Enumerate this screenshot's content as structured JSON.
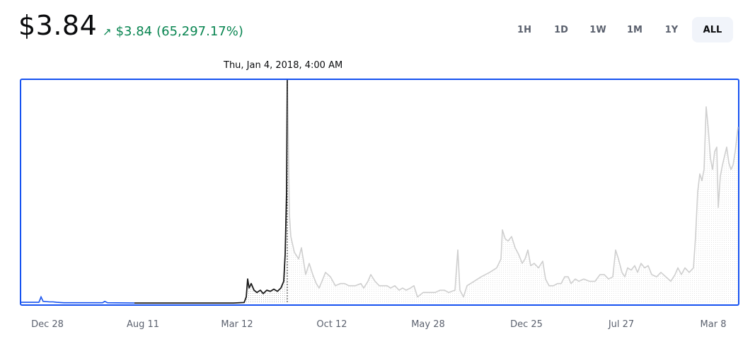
{
  "header": {
    "price": "$3.84",
    "change_arrow_icon": "arrow-up-right-icon",
    "change_amount": "$3.84",
    "change_percent": "(65,297.17%)",
    "change_color": "#098551"
  },
  "ranges": {
    "options": [
      "1H",
      "1D",
      "1W",
      "1M",
      "1Y",
      "ALL"
    ],
    "selected": "ALL"
  },
  "tooltip": {
    "label": "Thu, Jan 4, 2018, 4:00 AM"
  },
  "chart_data": {
    "type": "line",
    "x_tick_labels": [
      "Dec 28",
      "Aug 11",
      "Mar 12",
      "Oct 12",
      "May 28",
      "Dec 25",
      "Jul 27",
      "Mar 8"
    ],
    "hover_date": "Thu, Jan 4, 2018, 4:00 AM",
    "colors": {
      "highlighted": "#1a1a1a",
      "rest": "#cfcfcf",
      "early": "#1652f0",
      "border": "#1652f0"
    },
    "series": [
      {
        "values": [
          [
            0,
            0.006
          ],
          [
            18,
            0.006
          ],
          [
            25,
            0.006
          ],
          [
            28,
            0.03
          ],
          [
            31,
            0.01
          ],
          [
            40,
            0.008
          ],
          [
            45,
            0.008
          ],
          [
            50,
            0.006
          ],
          [
            60,
            0.004
          ],
          [
            90,
            0.004
          ],
          [
            115,
            0.004
          ],
          [
            118,
            0.01
          ],
          [
            122,
            0.004
          ],
          [
            160,
            0.003
          ],
          [
            250,
            0.003
          ],
          [
            300,
            0.003
          ],
          [
            315,
            0.005
          ],
          [
            318,
            0.03
          ],
          [
            320,
            0.11
          ],
          [
            322,
            0.07
          ],
          [
            325,
            0.09
          ],
          [
            329,
            0.06
          ],
          [
            333,
            0.05
          ],
          [
            338,
            0.06
          ],
          [
            342,
            0.045
          ],
          [
            347,
            0.06
          ],
          [
            352,
            0.055
          ],
          [
            357,
            0.065
          ],
          [
            362,
            0.055
          ],
          [
            367,
            0.07
          ],
          [
            371,
            0.1
          ],
          [
            373,
            0.22
          ],
          [
            375,
            0.5
          ],
          [
            376,
            1.0
          ],
          [
            377,
            0.82
          ],
          [
            379,
            0.4
          ],
          [
            381,
            0.3
          ],
          [
            386,
            0.23
          ],
          [
            392,
            0.2
          ],
          [
            396,
            0.25
          ],
          [
            402,
            0.13
          ],
          [
            407,
            0.18
          ],
          [
            412,
            0.13
          ],
          [
            417,
            0.09
          ],
          [
            421,
            0.07
          ],
          [
            425,
            0.1
          ],
          [
            430,
            0.14
          ],
          [
            437,
            0.12
          ],
          [
            444,
            0.08
          ],
          [
            451,
            0.09
          ],
          [
            457,
            0.09
          ],
          [
            463,
            0.08
          ],
          [
            472,
            0.08
          ],
          [
            480,
            0.09
          ],
          [
            484,
            0.07
          ],
          [
            490,
            0.1
          ],
          [
            494,
            0.13
          ],
          [
            500,
            0.1
          ],
          [
            506,
            0.08
          ],
          [
            511,
            0.08
          ],
          [
            517,
            0.08
          ],
          [
            522,
            0.07
          ],
          [
            528,
            0.08
          ],
          [
            534,
            0.06
          ],
          [
            539,
            0.07
          ],
          [
            544,
            0.06
          ],
          [
            550,
            0.07
          ],
          [
            555,
            0.08
          ],
          [
            560,
            0.03
          ],
          [
            568,
            0.05
          ],
          [
            575,
            0.05
          ],
          [
            585,
            0.05
          ],
          [
            592,
            0.06
          ],
          [
            598,
            0.06
          ],
          [
            604,
            0.05
          ],
          [
            613,
            0.06
          ],
          [
            617,
            0.24
          ],
          [
            620,
            0.06
          ],
          [
            625,
            0.03
          ],
          [
            630,
            0.08
          ],
          [
            640,
            0.1
          ],
          [
            650,
            0.12
          ],
          [
            662,
            0.14
          ],
          [
            672,
            0.16
          ],
          [
            678,
            0.2
          ],
          [
            680,
            0.33
          ],
          [
            684,
            0.29
          ],
          [
            688,
            0.28
          ],
          [
            693,
            0.3
          ],
          [
            698,
            0.25
          ],
          [
            703,
            0.22
          ],
          [
            708,
            0.18
          ],
          [
            712,
            0.2
          ],
          [
            716,
            0.24
          ],
          [
            720,
            0.17
          ],
          [
            725,
            0.18
          ],
          [
            731,
            0.16
          ],
          [
            737,
            0.19
          ],
          [
            741,
            0.11
          ],
          [
            746,
            0.08
          ],
          [
            752,
            0.08
          ],
          [
            758,
            0.09
          ],
          [
            763,
            0.09
          ],
          [
            768,
            0.12
          ],
          [
            773,
            0.12
          ],
          [
            777,
            0.09
          ],
          [
            783,
            0.11
          ],
          [
            788,
            0.1
          ],
          [
            795,
            0.11
          ],
          [
            803,
            0.1
          ],
          [
            811,
            0.1
          ],
          [
            818,
            0.13
          ],
          [
            824,
            0.13
          ],
          [
            830,
            0.11
          ],
          [
            836,
            0.12
          ],
          [
            840,
            0.24
          ],
          [
            844,
            0.2
          ],
          [
            849,
            0.14
          ],
          [
            853,
            0.12
          ],
          [
            857,
            0.16
          ],
          [
            862,
            0.15
          ],
          [
            867,
            0.17
          ],
          [
            871,
            0.14
          ],
          [
            876,
            0.18
          ],
          [
            881,
            0.16
          ],
          [
            886,
            0.17
          ],
          [
            891,
            0.13
          ],
          [
            898,
            0.12
          ],
          [
            904,
            0.14
          ],
          [
            911,
            0.12
          ],
          [
            918,
            0.1
          ],
          [
            924,
            0.13
          ],
          [
            928,
            0.16
          ],
          [
            933,
            0.13
          ],
          [
            938,
            0.16
          ],
          [
            944,
            0.14
          ],
          [
            950,
            0.16
          ],
          [
            953,
            0.3
          ],
          [
            956,
            0.5
          ],
          [
            959,
            0.58
          ],
          [
            962,
            0.55
          ],
          [
            965,
            0.6
          ],
          [
            968,
            0.88
          ],
          [
            971,
            0.78
          ],
          [
            974,
            0.65
          ],
          [
            977,
            0.6
          ],
          [
            980,
            0.68
          ],
          [
            983,
            0.7
          ],
          [
            985,
            0.43
          ],
          [
            988,
            0.57
          ],
          [
            991,
            0.62
          ],
          [
            994,
            0.66
          ],
          [
            997,
            0.7
          ],
          [
            1000,
            0.63
          ],
          [
            1003,
            0.6
          ],
          [
            1006,
            0.62
          ],
          [
            1009,
            0.68
          ],
          [
            1013,
            0.79
          ]
        ]
      }
    ]
  }
}
